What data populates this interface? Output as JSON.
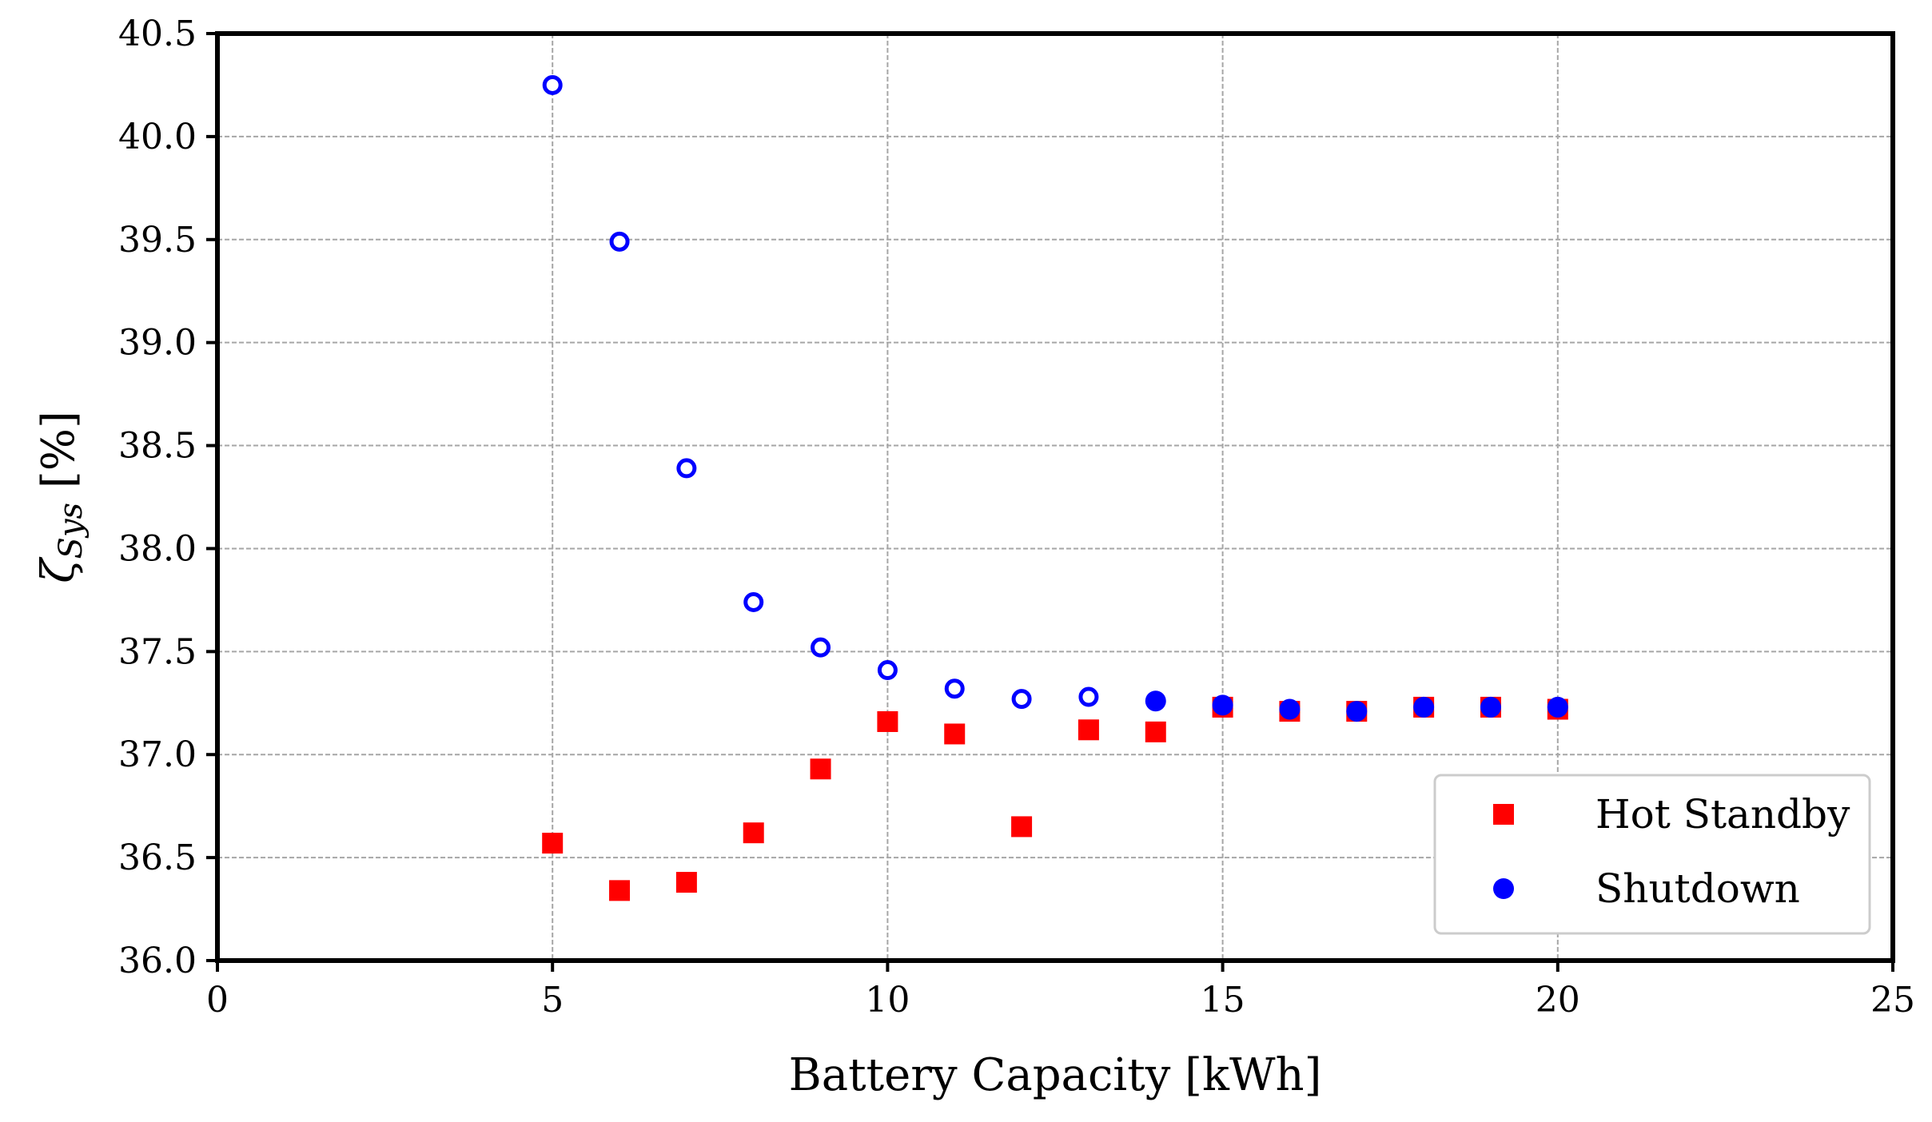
{
  "chart_data": {
    "type": "scatter",
    "title": "",
    "xlabel": "Battery Capacity [kWh]",
    "ylabel": "ζ_Sys [%]",
    "ylabel_main": "ζ",
    "ylabel_sub": "Sys",
    "ylabel_unit": " [%]",
    "xlim": [
      0,
      25
    ],
    "ylim": [
      36.0,
      40.5
    ],
    "xticks": [
      0,
      5,
      10,
      15,
      20,
      25
    ],
    "xtick_labels": [
      "0",
      "5",
      "10",
      "15",
      "20",
      "25"
    ],
    "yticks": [
      36.0,
      36.5,
      37.0,
      37.5,
      38.0,
      38.5,
      39.0,
      39.5,
      40.0,
      40.5
    ],
    "ytick_labels": [
      "36.0",
      "36.5",
      "37.0",
      "37.5",
      "38.0",
      "38.5",
      "39.0",
      "39.5",
      "40.0",
      "40.5"
    ],
    "grid": true,
    "legend_position": "bottom-right",
    "series": [
      {
        "name": "Hot Standby",
        "color": "#ff0000",
        "marker": "square",
        "points": [
          {
            "x": 5,
            "y": 36.57
          },
          {
            "x": 6,
            "y": 36.34
          },
          {
            "x": 7,
            "y": 36.38
          },
          {
            "x": 8,
            "y": 36.62
          },
          {
            "x": 9,
            "y": 36.93
          },
          {
            "x": 10,
            "y": 37.16
          },
          {
            "x": 11,
            "y": 37.1
          },
          {
            "x": 12,
            "y": 36.65
          },
          {
            "x": 13,
            "y": 37.12
          },
          {
            "x": 14,
            "y": 37.11
          },
          {
            "x": 15,
            "y": 37.23
          },
          {
            "x": 16,
            "y": 37.21
          },
          {
            "x": 17,
            "y": 37.21
          },
          {
            "x": 18,
            "y": 37.23
          },
          {
            "x": 19,
            "y": 37.23
          },
          {
            "x": 20,
            "y": 37.22
          }
        ]
      },
      {
        "name": "Shutdown",
        "color": "#0000ff",
        "marker": "circle",
        "points": [
          {
            "x": 5,
            "y": 40.25,
            "filled": false
          },
          {
            "x": 6,
            "y": 39.49,
            "filled": false
          },
          {
            "x": 7,
            "y": 38.39,
            "filled": false
          },
          {
            "x": 8,
            "y": 37.74,
            "filled": false
          },
          {
            "x": 9,
            "y": 37.52,
            "filled": false
          },
          {
            "x": 10,
            "y": 37.41,
            "filled": false
          },
          {
            "x": 11,
            "y": 37.32,
            "filled": false
          },
          {
            "x": 12,
            "y": 37.27,
            "filled": false
          },
          {
            "x": 13,
            "y": 37.28,
            "filled": false
          },
          {
            "x": 14,
            "y": 37.26,
            "filled": true
          },
          {
            "x": 15,
            "y": 37.24,
            "filled": true
          },
          {
            "x": 16,
            "y": 37.22,
            "filled": true
          },
          {
            "x": 17,
            "y": 37.21,
            "filled": true
          },
          {
            "x": 18,
            "y": 37.23,
            "filled": true
          },
          {
            "x": 19,
            "y": 37.23,
            "filled": true
          },
          {
            "x": 20,
            "y": 37.23,
            "filled": true
          }
        ]
      }
    ]
  }
}
